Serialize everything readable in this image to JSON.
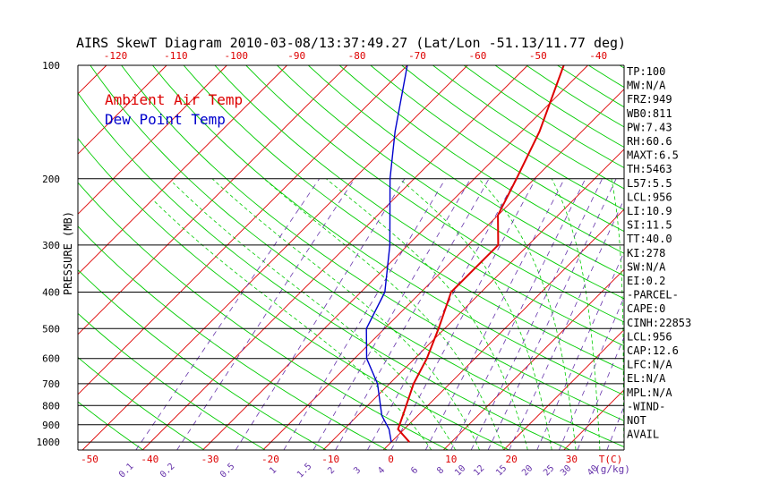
{
  "chart_data": {
    "type": "line",
    "title": "AIRS SkewT Diagram 2010-03-08/13:37:49.27 (Lat/Lon -51.13/11.77 deg)",
    "ylabel": "PRESSURE (MB)",
    "y_scale": "log",
    "ylim": [
      1050,
      100
    ],
    "pressure_ticks": [
      100,
      200,
      300,
      400,
      500,
      600,
      700,
      800,
      900,
      1000
    ],
    "bottom_temp_ticks": [
      -50,
      -40,
      -30,
      -20,
      -10,
      0,
      10,
      20,
      30
    ],
    "top_temp_ticks": [
      -120,
      -110,
      -100,
      -90,
      -80,
      -70,
      -60,
      -50,
      -40
    ],
    "temp_unit_label": "T(C)",
    "mixing_ratio_ticks": [
      "0.1",
      "0.2",
      "0.5",
      "1",
      "1.5",
      "2",
      "3",
      "4",
      "6",
      "8",
      "10",
      "12",
      "15",
      "20",
      "25",
      "30",
      "40"
    ],
    "mixing_ratio_unit_label": "(g/kg)",
    "legend_position": "top-left",
    "series": [
      {
        "name": "Ambient Air Temp",
        "color": "#dd0000",
        "points": [
          [
            1000,
            3
          ],
          [
            925,
            -1
          ],
          [
            850,
            -2.5
          ],
          [
            700,
            -6
          ],
          [
            600,
            -8
          ],
          [
            500,
            -11
          ],
          [
            400,
            -15
          ],
          [
            350,
            -15
          ],
          [
            300,
            -15
          ],
          [
            250,
            -20
          ],
          [
            200,
            -23
          ],
          [
            150,
            -27
          ],
          [
            100,
            -34
          ]
        ]
      },
      {
        "name": "Dew Point Temp",
        "color": "#0000cc",
        "points": [
          [
            1000,
            0
          ],
          [
            925,
            -2.5
          ],
          [
            850,
            -6
          ],
          [
            700,
            -12
          ],
          [
            600,
            -18
          ],
          [
            500,
            -23
          ],
          [
            400,
            -26
          ],
          [
            300,
            -33
          ],
          [
            200,
            -44
          ],
          [
            150,
            -51
          ],
          [
            100,
            -60
          ]
        ]
      }
    ],
    "indices": [
      "TP:100",
      "MW:N/A",
      "FRZ:949",
      "WB0:811",
      "PW:7.43",
      "RH:60.6",
      "MAXT:6.5",
      "TH:5463",
      "L57:5.5",
      "LCL:956",
      "LI:10.9",
      "SI:11.5",
      "TT:40.0",
      "KI:278",
      "SW:N/A",
      "EI:0.2",
      "-PARCEL-",
      "CAPE:0",
      "CINH:22853",
      "LCL:956",
      "CAP:12.6",
      "LFC:N/A",
      "EL:N/A",
      "MPL:N/A",
      "-WIND-",
      "NOT",
      "AVAIL"
    ],
    "colors": {
      "isotherm": "#dd0000",
      "dry_adiabat": "#00cc00",
      "moist_adiabat": "#00cc00",
      "mixing_ratio": "#6633aa",
      "isobar": "#000000"
    }
  }
}
